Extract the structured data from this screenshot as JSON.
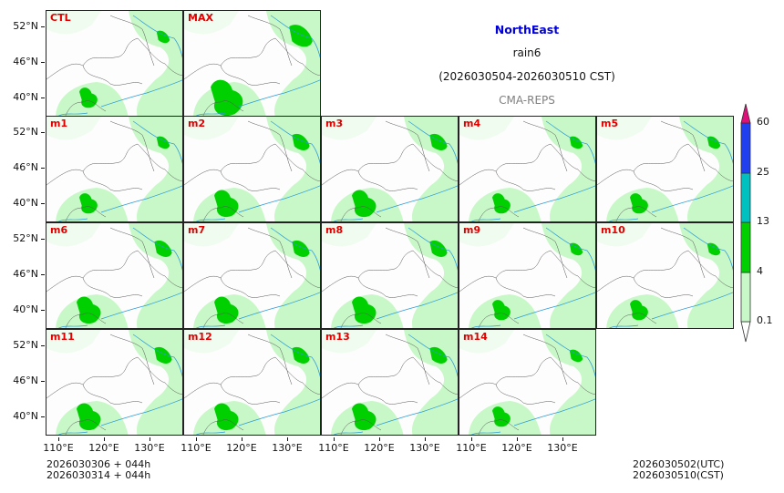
{
  "title": {
    "region": "NorthEast",
    "variable": "rain6",
    "period": "(2026030504-2026030510 CST)",
    "source": "CMA-REPS"
  },
  "colors": {
    "region_title": "#0000dd",
    "source": "#808080",
    "panel_label": "#e00000"
  },
  "panels": [
    {
      "label": "CTL",
      "intensity": 1
    },
    {
      "label": "MAX",
      "intensity": 3
    },
    {
      "label": "m1",
      "intensity": 1
    },
    {
      "label": "m2",
      "intensity": 2
    },
    {
      "label": "m3",
      "intensity": 2
    },
    {
      "label": "m4",
      "intensity": 1
    },
    {
      "label": "m5",
      "intensity": 1
    },
    {
      "label": "m6",
      "intensity": 2
    },
    {
      "label": "m7",
      "intensity": 2
    },
    {
      "label": "m8",
      "intensity": 2
    },
    {
      "label": "m9",
      "intensity": 1
    },
    {
      "label": "m10",
      "intensity": 1
    },
    {
      "label": "m11",
      "intensity": 2
    },
    {
      "label": "m12",
      "intensity": 2
    },
    {
      "label": "m13",
      "intensity": 2
    },
    {
      "label": "m14",
      "intensity": 1
    }
  ],
  "y_ticks": [
    "52°N",
    "46°N",
    "40°N"
  ],
  "x_ticks": [
    "110°E",
    "120°E",
    "130°E"
  ],
  "colorbar": {
    "levels": [
      "0.1",
      "4",
      "13",
      "25",
      "60"
    ],
    "colors": [
      "#ffffff",
      "#c8f8c8",
      "#00d000",
      "#00c0c0",
      "#2040f0",
      "#e0107a"
    ]
  },
  "footer": {
    "init_line1": "2026030306  +  044h",
    "init_line2": "2026030314  +  044h",
    "valid_utc": "2026030502(UTC)",
    "valid_cst": "2026030510(CST)"
  }
}
